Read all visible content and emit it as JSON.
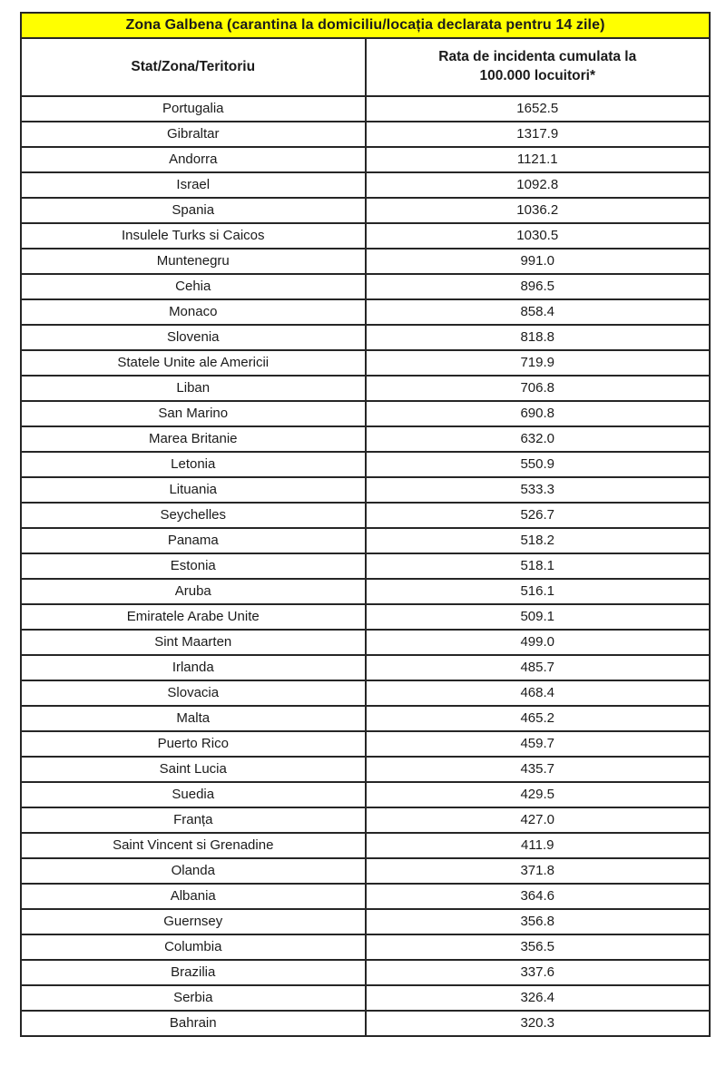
{
  "table": {
    "title": "Zona Galbena (carantina la domiciliu/locația declarata pentru 14 zile)",
    "title_background": "#ffff00",
    "border_color": "#262626",
    "header": {
      "country": "Stat/Zona/Teritoriu",
      "rate_line1": "Rata de incidenta cumulata la",
      "rate_line2": "100.000 locuitori*"
    },
    "rows": [
      {
        "country": "Portugalia",
        "rate": "1652.5"
      },
      {
        "country": "Gibraltar",
        "rate": "1317.9"
      },
      {
        "country": "Andorra",
        "rate": "1121.1"
      },
      {
        "country": "Israel",
        "rate": "1092.8"
      },
      {
        "country": "Spania",
        "rate": "1036.2"
      },
      {
        "country": "Insulele Turks si Caicos",
        "rate": "1030.5"
      },
      {
        "country": "Muntenegru",
        "rate": "991.0"
      },
      {
        "country": "Cehia",
        "rate": "896.5"
      },
      {
        "country": "Monaco",
        "rate": "858.4"
      },
      {
        "country": "Slovenia",
        "rate": "818.8"
      },
      {
        "country": "Statele Unite ale Americii",
        "rate": "719.9"
      },
      {
        "country": "Liban",
        "rate": "706.8"
      },
      {
        "country": "San Marino",
        "rate": "690.8"
      },
      {
        "country": "Marea Britanie",
        "rate": "632.0"
      },
      {
        "country": "Letonia",
        "rate": "550.9"
      },
      {
        "country": "Lituania",
        "rate": "533.3"
      },
      {
        "country": "Seychelles",
        "rate": "526.7"
      },
      {
        "country": "Panama",
        "rate": "518.2"
      },
      {
        "country": "Estonia",
        "rate": "518.1"
      },
      {
        "country": "Aruba",
        "rate": "516.1"
      },
      {
        "country": "Emiratele Arabe Unite",
        "rate": "509.1"
      },
      {
        "country": "Sint Maarten",
        "rate": "499.0"
      },
      {
        "country": "Irlanda",
        "rate": "485.7"
      },
      {
        "country": "Slovacia",
        "rate": "468.4"
      },
      {
        "country": "Malta",
        "rate": "465.2"
      },
      {
        "country": "Puerto Rico",
        "rate": "459.7"
      },
      {
        "country": "Saint Lucia",
        "rate": "435.7"
      },
      {
        "country": "Suedia",
        "rate": "429.5"
      },
      {
        "country": "Franța",
        "rate": "427.0"
      },
      {
        "country": "Saint Vincent si Grenadine",
        "rate": "411.9"
      },
      {
        "country": "Olanda",
        "rate": "371.8"
      },
      {
        "country": "Albania",
        "rate": "364.6"
      },
      {
        "country": "Guernsey",
        "rate": "356.8"
      },
      {
        "country": "Columbia",
        "rate": "356.5"
      },
      {
        "country": "Brazilia",
        "rate": "337.6"
      },
      {
        "country": "Serbia",
        "rate": "326.4"
      },
      {
        "country": "Bahrain",
        "rate": "320.3"
      }
    ]
  }
}
